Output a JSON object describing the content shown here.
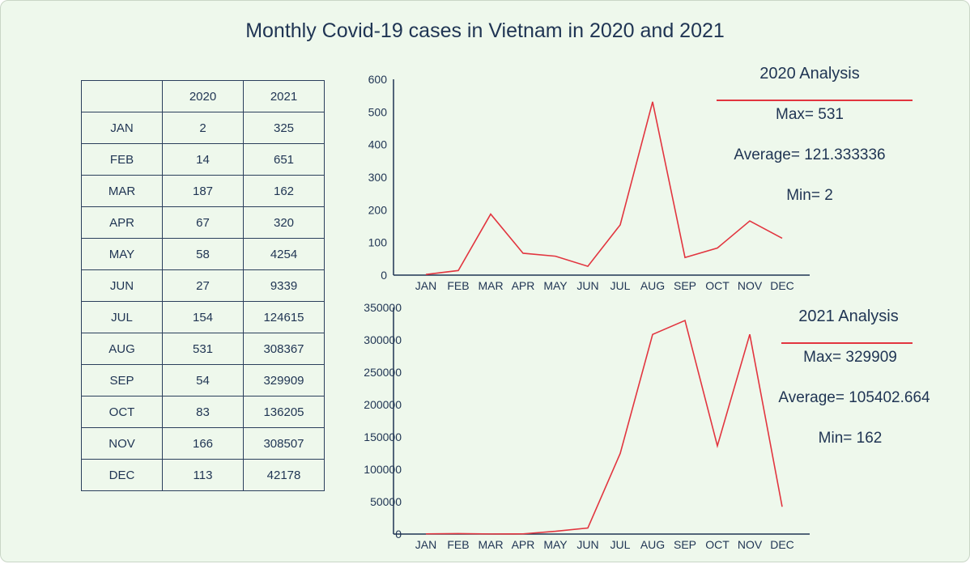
{
  "title": "Monthly Covid-19 cases in Vietnam in 2020 and 2021",
  "table": {
    "header": [
      "",
      "2020",
      "2021"
    ],
    "rows": [
      [
        "JAN",
        "2",
        "325"
      ],
      [
        "FEB",
        "14",
        "651"
      ],
      [
        "MAR",
        "187",
        "162"
      ],
      [
        "APR",
        "67",
        "320"
      ],
      [
        "MAY",
        "58",
        "4254"
      ],
      [
        "JUN",
        "27",
        "9339"
      ],
      [
        "JUL",
        "154",
        "124615"
      ],
      [
        "AUG",
        "531",
        "308367"
      ],
      [
        "SEP",
        "54",
        "329909"
      ],
      [
        "OCT",
        "83",
        "136205"
      ],
      [
        "NOV",
        "166",
        "308507"
      ],
      [
        "DEC",
        "113",
        "42178"
      ]
    ]
  },
  "analysis_2020": {
    "heading": "2020 Analysis",
    "max": "Max= 531",
    "average": "Average= 121.333336",
    "min": "Min= 2"
  },
  "analysis_2021": {
    "heading": "2021 Analysis",
    "max": "Max= 329909",
    "average": "Average= 105402.664",
    "min": "Min= 162"
  },
  "colors": {
    "line": "#e2353f",
    "axis": "#1f3453",
    "background": "#eef8ec"
  },
  "chart_data": [
    {
      "type": "line",
      "categories": [
        "JAN",
        "FEB",
        "MAR",
        "APR",
        "MAY",
        "JUN",
        "JUL",
        "AUG",
        "SEP",
        "OCT",
        "NOV",
        "DEC"
      ],
      "values": [
        2,
        14,
        187,
        67,
        58,
        27,
        154,
        531,
        54,
        83,
        166,
        113
      ],
      "ylim": [
        0,
        600
      ],
      "yticks": [
        0,
        100,
        200,
        300,
        400,
        500,
        600
      ],
      "ytick_labels": [
        "0",
        "100",
        "200",
        "300",
        "400",
        "500",
        "600"
      ]
    },
    {
      "type": "line",
      "categories": [
        "JAN",
        "FEB",
        "MAR",
        "APR",
        "MAY",
        "JUN",
        "JUL",
        "AUG",
        "SEP",
        "OCT",
        "NOV",
        "DEC"
      ],
      "values": [
        325,
        651,
        162,
        320,
        4254,
        9339,
        124615,
        308367,
        329909,
        136205,
        308507,
        42178
      ],
      "ylim": [
        0,
        350000
      ],
      "yticks": [
        0,
        50000,
        100000,
        150000,
        200000,
        250000,
        300000,
        350000
      ],
      "ytick_labels": [
        "0",
        "50000",
        "100000",
        "150000",
        "200000",
        "250000",
        "300000",
        "350000"
      ]
    }
  ]
}
